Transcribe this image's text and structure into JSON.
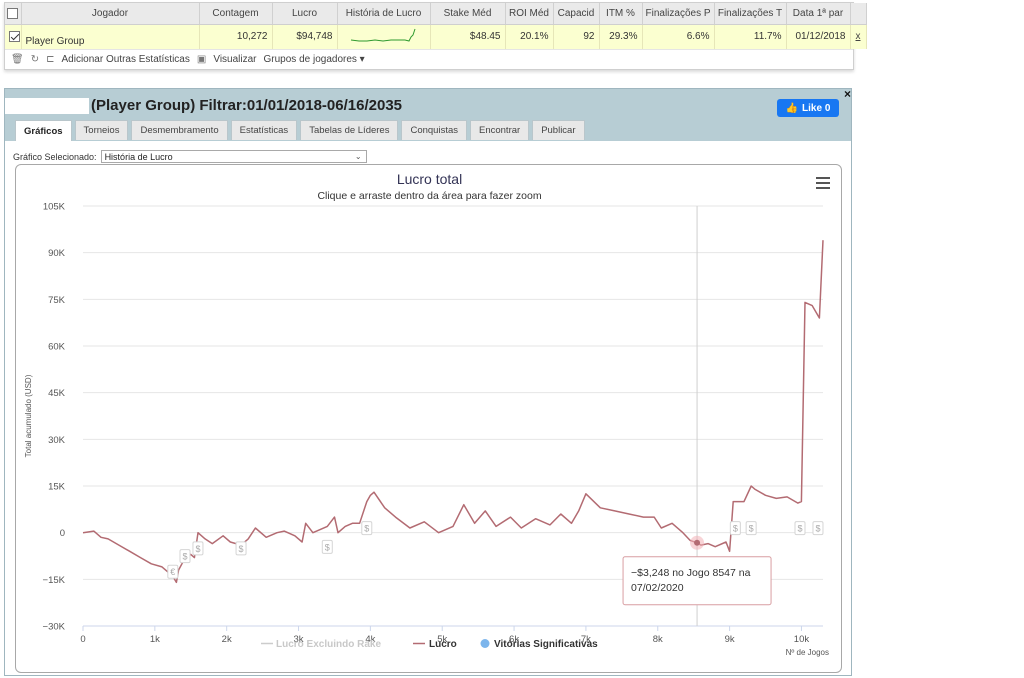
{
  "table": {
    "headers": [
      "Jogador",
      "Contagem",
      "Lucro",
      "História de Lucro",
      "Stake Méd",
      "ROI Méd",
      "Capacid",
      "ITM %",
      "Finalizações P",
      "Finalizações T",
      "Data 1ª par"
    ],
    "row": {
      "player": "Player Group",
      "count": "10,272",
      "profit": "$94,748",
      "stake": "$48.45",
      "roi": "20.1%",
      "capacity": "92",
      "itm": "29.3%",
      "final_p": "6.6%",
      "final_t": "11.7%",
      "first_date": "01/12/2018",
      "remove": "x"
    },
    "toolbar": {
      "add_stats": "Adicionar Outras Estatísticas",
      "view": "Visualizar",
      "groups": "Grupos de jogadores ▾"
    }
  },
  "panel": {
    "title": "(Player Group) Filtrar:01/01/2018-06/16/2035",
    "like_label": "Like 0",
    "close": "×",
    "tabs": [
      "Gráficos",
      "Torneios",
      "Desmembramento",
      "Estatísticas",
      "Tabelas de Líderes",
      "Conquistas",
      "Encontrar",
      "Publicar"
    ],
    "active_tab": 0,
    "chart_select_label": "Gráfico Selecionado:",
    "chart_select_value": "História de Lucro"
  },
  "colors": {
    "line": "#b36b72",
    "marker": "#f2b1b6",
    "crosshair": "#cfcfcf",
    "tooltip_border": "#d89ea2",
    "legend_blue": "#7cb5ec"
  },
  "chart_data": {
    "type": "line",
    "title": "Lucro total",
    "subtitle": "Clique e arraste dentro da área para fazer zoom",
    "xlabel": "Nº de Jogos",
    "ylabel": "Total acumulado (USD)",
    "xlim": [
      0,
      10300
    ],
    "ylim": [
      -30000,
      105000
    ],
    "x_ticks": [
      0,
      1000,
      2000,
      3000,
      4000,
      5000,
      6000,
      7000,
      8000,
      9000,
      10000
    ],
    "x_tick_labels": [
      "0",
      "1k",
      "2k",
      "3k",
      "4k",
      "5k",
      "6k",
      "7k",
      "8k",
      "9k",
      "10k"
    ],
    "y_ticks": [
      -30000,
      -15000,
      0,
      15000,
      30000,
      45000,
      60000,
      75000,
      90000,
      105000
    ],
    "y_tick_labels": [
      "−30K",
      "−15K",
      "0",
      "15K",
      "30K",
      "45K",
      "60K",
      "75K",
      "90K",
      "105K"
    ],
    "series": [
      {
        "name": "Lucro",
        "x": [
          0,
          150,
          250,
          350,
          500,
          650,
          800,
          950,
          1100,
          1250,
          1300,
          1330,
          1400,
          1500,
          1550,
          1600,
          1700,
          1800,
          1950,
          2050,
          2200,
          2300,
          2400,
          2550,
          2700,
          2800,
          2950,
          3050,
          3100,
          3200,
          3300,
          3400,
          3500,
          3550,
          3650,
          3750,
          3850,
          3950,
          4000,
          4050,
          4200,
          4350,
          4550,
          4750,
          4950,
          5150,
          5300,
          5450,
          5600,
          5750,
          5950,
          6100,
          6300,
          6500,
          6650,
          6800,
          6900,
          7000,
          7200,
          7400,
          7600,
          7800,
          7950,
          8050,
          8200,
          8350,
          8450,
          8547,
          8600,
          8700,
          8800,
          8950,
          9000,
          9050,
          9100,
          9200,
          9300,
          9350,
          9500,
          9650,
          9800,
          9950,
          10000,
          10050,
          10150,
          10250,
          10300
        ],
        "y": [
          0,
          500,
          -1500,
          -2000,
          -4000,
          -6000,
          -8000,
          -10000,
          -11000,
          -14000,
          -16000,
          -12000,
          -9000,
          -7000,
          -8000,
          0,
          -2000,
          -3500,
          -1000,
          -3000,
          -4000,
          -2000,
          1500,
          -1500,
          0,
          500,
          -1000,
          -3000,
          3000,
          0,
          1000,
          2000,
          5000,
          0,
          2000,
          3000,
          3000,
          10000,
          12000,
          13000,
          8000,
          5000,
          1500,
          3500,
          0,
          2000,
          9000,
          3000,
          7000,
          2000,
          5000,
          1500,
          4500,
          2500,
          6000,
          3000,
          7000,
          12500,
          8000,
          7000,
          6000,
          5000,
          5000,
          1500,
          3000,
          0,
          -2500,
          -3248,
          -4000,
          -3500,
          -4500,
          -3000,
          -6000,
          10000,
          10000,
          10000,
          15000,
          14000,
          12000,
          11000,
          11500,
          9500,
          10000,
          74000,
          73000,
          69000,
          94000
        ],
        "color": "#b36b72"
      }
    ],
    "markers": [
      {
        "x": 1250,
        "y": -14000,
        "symbol": "€"
      },
      {
        "x": 1420,
        "y": -9000,
        "symbol": "$"
      },
      {
        "x": 1600,
        "y": -6500,
        "symbol": "$"
      },
      {
        "x": 2200,
        "y": -6500,
        "symbol": "$"
      },
      {
        "x": 3400,
        "y": -6000,
        "symbol": "$"
      },
      {
        "x": 3950,
        "y": 0,
        "symbol": "$"
      },
      {
        "x": 9080,
        "y": 0,
        "symbol": "$"
      },
      {
        "x": 9300,
        "y": 0,
        "symbol": "$"
      },
      {
        "x": 9980,
        "y": 0,
        "symbol": "$"
      },
      {
        "x": 10230,
        "y": 0,
        "symbol": "$"
      }
    ],
    "highlight": {
      "x": 8547,
      "y": -3248
    },
    "tooltip": [
      "−$3,248 no Jogo 8547 na",
      "07/02/2020"
    ],
    "legend": [
      "Lucro Excluindo Rake",
      "Lucro",
      "Vitórias Significativas"
    ],
    "legend_position": "bottom"
  }
}
